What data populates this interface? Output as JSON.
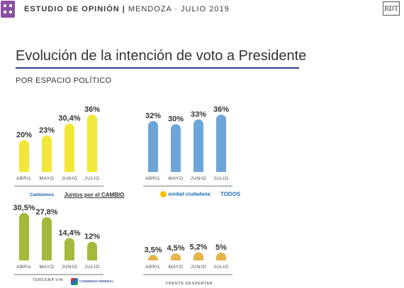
{
  "header": {
    "brand_left": "ESTUDIO DE OPINIÓN",
    "separator": "|",
    "location_date": "MENDOZA · JULIO 2019",
    "brand_right": "RDT"
  },
  "title": "Evolución de la intención de voto a Presidente",
  "subtitle": "POR ESPACIO POLÍTICO",
  "colors": {
    "yellow": "#f2e83a",
    "blue": "#6ea5d8",
    "green": "#a3ba3a",
    "gold": "#e6b24a",
    "title_rule": "#2f3f8f"
  },
  "chart_data": [
    {
      "type": "bar",
      "categories": [
        "ABRIL",
        "MAYO",
        "JUNIO",
        "JULIO"
      ],
      "values": [
        20,
        23,
        30.4,
        36
      ],
      "labels": [
        "20%",
        "23%",
        "30,4%",
        "36%"
      ],
      "ylim": [
        0,
        40
      ],
      "color": "#f2e83a",
      "logos": [
        "Cambiemos",
        "Juntos por el CAMBIO"
      ]
    },
    {
      "type": "bar",
      "categories": [
        "ABRIL",
        "MAYO",
        "JUNIO",
        "JULIO"
      ],
      "values": [
        32,
        30,
        33,
        36
      ],
      "labels": [
        "32%",
        "30%",
        "33%",
        "36%"
      ],
      "ylim": [
        0,
        40
      ],
      "color": "#6ea5d8",
      "logos": [
        "unidad ciudadana",
        "TODOS"
      ]
    },
    {
      "type": "bar",
      "categories": [
        "ABRIL",
        "MAYO",
        "JUNIO",
        "JULIO"
      ],
      "values": [
        30.5,
        27.8,
        14.4,
        12
      ],
      "labels": [
        "30,5%",
        "27,8%",
        "14,4%",
        "12%"
      ],
      "ylim": [
        0,
        40
      ],
      "color": "#a3ba3a",
      "alliance_name": "TERCERA VIA",
      "logos": [
        "CONSENSO FEDERAL"
      ]
    },
    {
      "type": "bar",
      "categories": [
        "ABRIL",
        "MAYO",
        "JUNIO",
        "JULIO"
      ],
      "values": [
        3.5,
        4.5,
        5.2,
        5
      ],
      "labels": [
        "3,5%",
        "4,5%",
        "5,2%",
        "5%"
      ],
      "ylim": [
        0,
        40
      ],
      "color": "#e6b24a",
      "alliance_name": "FRENTE DESPERTAR"
    }
  ]
}
